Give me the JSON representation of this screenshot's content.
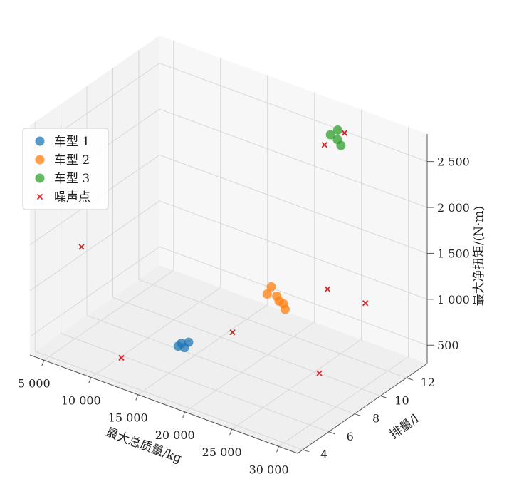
{
  "chart_data": {
    "type": "scatter",
    "projection": "3d",
    "grid": true,
    "legend_placement": "upper-left",
    "xlabel": "最大总质量/kg",
    "ylabel": "排量/l",
    "zlabel": "最大净扭矩/(N·m)",
    "xticks": [
      "5 000",
      "10 000",
      "15 000",
      "20 000",
      "25 000",
      "30 000"
    ],
    "yticks": [
      "4",
      "6",
      "8",
      "10",
      "12"
    ],
    "zticks": [
      "500",
      "1 000",
      "1 500",
      "2 000",
      "2 500"
    ],
    "series": [
      {
        "name": "车型 1",
        "marker": "circle",
        "color": "#1f77b4",
        "points": [
          {
            "x": 17000,
            "y": 5.5,
            "z": 750
          },
          {
            "x": 17500,
            "y": 5.7,
            "z": 760
          },
          {
            "x": 16800,
            "y": 5.4,
            "z": 720
          },
          {
            "x": 17200,
            "y": 5.6,
            "z": 700
          }
        ]
      },
      {
        "name": "车型 2",
        "marker": "circle",
        "color": "#ff7f0e",
        "points": [
          {
            "x": 22000,
            "y": 8.5,
            "z": 1180
          },
          {
            "x": 22300,
            "y": 8.6,
            "z": 1260
          },
          {
            "x": 22600,
            "y": 8.8,
            "z": 1150
          },
          {
            "x": 23000,
            "y": 8.7,
            "z": 1120
          },
          {
            "x": 23200,
            "y": 8.9,
            "z": 1080
          },
          {
            "x": 23500,
            "y": 8.8,
            "z": 1040
          }
        ]
      },
      {
        "name": "车型 3",
        "marker": "circle",
        "color": "#2ca02c",
        "points": [
          {
            "x": 24000,
            "y": 12.5,
            "z": 2650
          },
          {
            "x": 23500,
            "y": 12.3,
            "z": 2600
          },
          {
            "x": 24100,
            "y": 12.4,
            "z": 2560
          },
          {
            "x": 24200,
            "y": 12.6,
            "z": 2480
          }
        ]
      },
      {
        "name": "噪声点",
        "marker": "x",
        "color": "#d62728",
        "points": [
          {
            "x": 5000,
            "y": 6.5,
            "z": 1250
          },
          {
            "x": 12000,
            "y": 4.5,
            "z": 500
          },
          {
            "x": 19000,
            "y": 8.0,
            "z": 700
          },
          {
            "x": 31000,
            "y": 6.0,
            "z": 900
          },
          {
            "x": 29000,
            "y": 11.0,
            "z": 1100
          },
          {
            "x": 30500,
            "y": 7.0,
            "z": 1700
          },
          {
            "x": 23000,
            "y": 12.2,
            "z": 2480
          },
          {
            "x": 24300,
            "y": 12.8,
            "z": 2600
          }
        ]
      }
    ]
  }
}
